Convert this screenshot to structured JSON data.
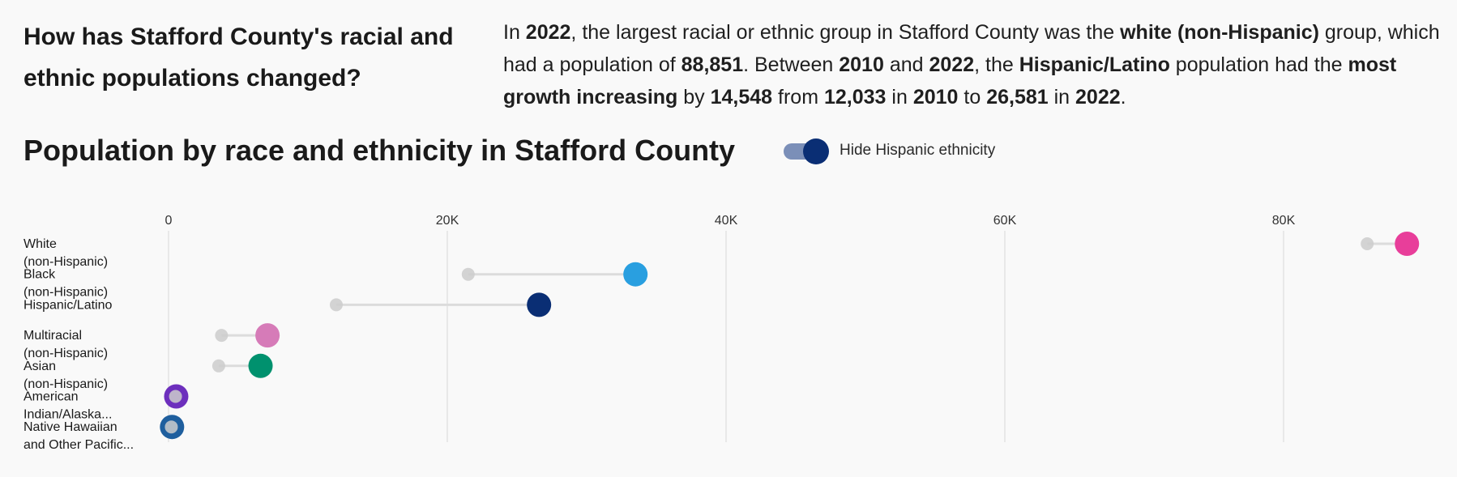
{
  "header": {
    "question_line1": "How has Stafford County's racial and",
    "question_line2": "ethnic populations changed?"
  },
  "summary": {
    "t1": "In ",
    "b1": "2022",
    "t2": ", the largest racial or ethnic group in Stafford County was the ",
    "b2": "white (non-Hispanic)",
    "t3": " group, which had a population of ",
    "b3": "88,851",
    "t4": ". Between ",
    "b4": "2010",
    "t5": " and ",
    "b5": "2022",
    "t6": ", the ",
    "b6": "Hispanic/Latino",
    "t7": " population had the ",
    "b7": "most growth increasing",
    "t8": " by ",
    "b8": "14,548",
    "t9": " from ",
    "b9": "12,033",
    "t10": " in ",
    "b10": "2010",
    "t11": " to ",
    "b11": "26,581",
    "t12": " in ",
    "b12": "2022",
    "t13": "."
  },
  "toggle": {
    "label": "Hide Hispanic ethnicity",
    "on": true
  },
  "chart_data": {
    "type": "dot-range",
    "title": "Population by race and ethnicity in Stafford County",
    "xlim": [
      0,
      90000
    ],
    "xticks": [
      0,
      20000,
      40000,
      60000,
      80000
    ],
    "xtick_labels": [
      "0",
      "20K",
      "40K",
      "60K",
      "80K"
    ],
    "grid": true,
    "start_year": "2010",
    "end_year": "2022",
    "start_color": "#cccccc",
    "series": [
      {
        "name": "White (non-Hispanic)",
        "label_lines": [
          "White",
          "(non-Hispanic)"
        ],
        "v2010": 86000,
        "v2022": 88851,
        "color": "#e83e9a"
      },
      {
        "name": "Black (non-Hispanic)",
        "label_lines": [
          "Black",
          "(non-Hispanic)"
        ],
        "v2010": 21500,
        "v2022": 33500,
        "color": "#299fe0"
      },
      {
        "name": "Hispanic/Latino",
        "label_lines": [
          "Hispanic/Latino"
        ],
        "v2010": 12033,
        "v2022": 26581,
        "color": "#0a2e74"
      },
      {
        "name": "Multiracial (non-Hispanic)",
        "label_lines": [
          "Multiracial",
          "(non-Hispanic)"
        ],
        "v2010": 3800,
        "v2022": 7100,
        "color": "#d67bb8"
      },
      {
        "name": "Asian (non-Hispanic)",
        "label_lines": [
          "Asian",
          "(non-Hispanic)"
        ],
        "v2010": 3600,
        "v2022": 6600,
        "color": "#00916e"
      },
      {
        "name": "American Indian/Alaska Native",
        "label_lines": [
          "American",
          "Indian/Alaska..."
        ],
        "v2010": 500,
        "v2022": 550,
        "color": "#6d2fbd"
      },
      {
        "name": "Native Hawaiian and Other Pacific Islander",
        "label_lines": [
          "Native Hawaiian",
          "and Other Pacific..."
        ],
        "v2010": 200,
        "v2022": 250,
        "color": "#1f5f9e"
      }
    ]
  }
}
